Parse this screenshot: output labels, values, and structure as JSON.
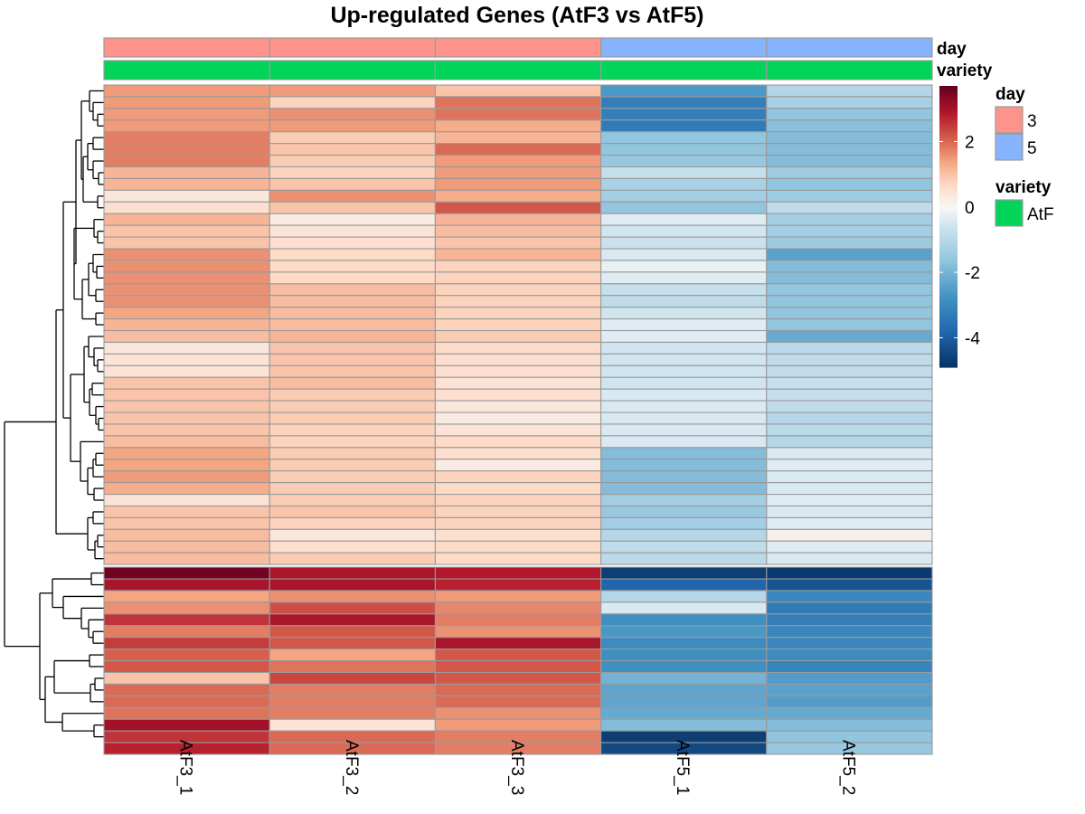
{
  "chart_data": {
    "type": "heatmap",
    "title": "Up-regulated Genes (AtF3 vs AtF5)",
    "columns": [
      "AtF3_1",
      "AtF3_2",
      "AtF3_3",
      "AtF5_1",
      "AtF5_2"
    ],
    "row_labels_shown": false,
    "values": [
      [
        1.5,
        1.5,
        1.0,
        -2.6,
        -1.0
      ],
      [
        1.5,
        0.8,
        1.9,
        -3.2,
        -1.2
      ],
      [
        1.5,
        1.6,
        1.9,
        -3.2,
        -1.6
      ],
      [
        1.5,
        1.5,
        1.3,
        -3.3,
        -1.7
      ],
      [
        1.8,
        0.9,
        1.2,
        -1.6,
        -1.8
      ],
      [
        1.8,
        1.0,
        2.0,
        -1.6,
        -1.8
      ],
      [
        1.8,
        0.9,
        1.5,
        -1.5,
        -1.8
      ],
      [
        1.2,
        0.8,
        1.5,
        -0.7,
        -1.4
      ],
      [
        1.2,
        1.0,
        1.5,
        -1.2,
        -1.6
      ],
      [
        0.4,
        1.6,
        1.3,
        -1.3,
        -1.4
      ],
      [
        0.6,
        1.0,
        2.2,
        -1.6,
        -0.8
      ],
      [
        1.2,
        0.3,
        1.2,
        -0.3,
        -1.3
      ],
      [
        1.0,
        0.5,
        1.1,
        -0.5,
        -1.3
      ],
      [
        1.0,
        0.6,
        1.0,
        -0.6,
        -1.4
      ],
      [
        1.6,
        0.7,
        1.2,
        -0.4,
        -2.4
      ],
      [
        1.6,
        0.7,
        0.8,
        -0.2,
        -1.8
      ],
      [
        1.6,
        0.7,
        0.8,
        -0.3,
        -1.8
      ],
      [
        1.6,
        1.1,
        0.8,
        -0.7,
        -1.6
      ],
      [
        1.6,
        1.1,
        0.8,
        -0.8,
        -1.6
      ],
      [
        1.4,
        1.1,
        0.8,
        -0.5,
        -1.6
      ],
      [
        1.2,
        1.1,
        0.8,
        -0.3,
        -1.6
      ],
      [
        1.1,
        1.2,
        0.9,
        -0.3,
        -2.2
      ],
      [
        0.4,
        1.0,
        0.7,
        -0.5,
        -0.9
      ],
      [
        0.5,
        1.0,
        0.6,
        -0.5,
        -0.8
      ],
      [
        0.5,
        1.0,
        0.6,
        -0.5,
        -0.8
      ],
      [
        1.0,
        1.1,
        0.5,
        -0.5,
        -0.7
      ],
      [
        1.0,
        0.9,
        0.6,
        -0.4,
        -0.7
      ],
      [
        1.0,
        0.9,
        0.4,
        -0.4,
        -0.8
      ],
      [
        1.0,
        0.9,
        0.3,
        -0.4,
        -1.0
      ],
      [
        1.0,
        0.8,
        0.5,
        -0.4,
        -0.9
      ],
      [
        1.1,
        0.8,
        0.7,
        -0.4,
        -1.0
      ],
      [
        1.4,
        0.9,
        0.6,
        -1.8,
        -0.4
      ],
      [
        1.4,
        0.9,
        0.3,
        -1.8,
        -0.3
      ],
      [
        1.5,
        0.9,
        0.8,
        -1.8,
        -0.4
      ],
      [
        1.3,
        0.9,
        0.7,
        -1.8,
        -0.4
      ],
      [
        0.5,
        0.9,
        0.8,
        -1.3,
        -0.3
      ],
      [
        1.0,
        1.0,
        0.8,
        -1.5,
        -0.4
      ],
      [
        1.0,
        0.8,
        0.8,
        -1.3,
        -0.3
      ],
      [
        1.1,
        0.4,
        0.6,
        -1.0,
        0.2
      ],
      [
        1.1,
        0.6,
        0.7,
        -0.8,
        -0.3
      ],
      [
        1.1,
        0.9,
        0.7,
        -0.9,
        -0.4
      ],
      [
        3.6,
        3.0,
        2.9,
        -4.6,
        -4.7
      ],
      [
        3.0,
        3.0,
        2.8,
        -3.8,
        -4.2
      ],
      [
        1.4,
        1.6,
        1.5,
        -1.0,
        -3.0
      ],
      [
        1.6,
        2.3,
        1.7,
        -0.4,
        -3.3
      ],
      [
        2.6,
        3.0,
        1.8,
        -2.8,
        -3.2
      ],
      [
        1.8,
        2.2,
        1.6,
        -2.6,
        -3.0
      ],
      [
        2.5,
        2.2,
        3.0,
        -2.9,
        -3.0
      ],
      [
        2.1,
        1.4,
        2.2,
        -2.8,
        -2.9
      ],
      [
        2.2,
        1.9,
        2.2,
        -2.8,
        -3.1
      ],
      [
        1.0,
        2.4,
        2.2,
        -2.0,
        -2.5
      ],
      [
        2.0,
        1.8,
        2.0,
        -2.3,
        -2.4
      ],
      [
        2.0,
        1.8,
        2.0,
        -2.3,
        -2.5
      ],
      [
        1.9,
        1.8,
        1.6,
        -2.2,
        -2.2
      ],
      [
        3.1,
        0.5,
        1.5,
        -1.8,
        -1.8
      ],
      [
        2.6,
        2.0,
        1.8,
        -4.6,
        -1.6
      ],
      [
        2.8,
        2.0,
        1.8,
        -4.4,
        -1.5
      ]
    ],
    "color_scale": {
      "min": -4.9,
      "max": 3.7,
      "stops": [
        {
          "value": -4.9,
          "color": "#053061"
        },
        {
          "value": -3.8,
          "color": "#2166ac"
        },
        {
          "value": -2.7,
          "color": "#4393c3"
        },
        {
          "value": -1.6,
          "color": "#92c5de"
        },
        {
          "value": -0.5,
          "color": "#d1e5f0"
        },
        {
          "value": 0.0,
          "color": "#f7f7f7"
        },
        {
          "value": 0.7,
          "color": "#fddbc7"
        },
        {
          "value": 1.4,
          "color": "#f4a582"
        },
        {
          "value": 2.1,
          "color": "#d6604d"
        },
        {
          "value": 2.9,
          "color": "#b2182b"
        },
        {
          "value": 3.7,
          "color": "#67001f"
        }
      ],
      "ticks": [
        2,
        0,
        -2,
        -4
      ],
      "tick_labels": [
        "2",
        "0",
        "-2",
        "-4"
      ]
    },
    "column_annotations": [
      {
        "name": "day",
        "values": [
          "3",
          "3",
          "3",
          "5",
          "5"
        ]
      },
      {
        "name": "variety",
        "values": [
          "AtF",
          "AtF",
          "AtF",
          "AtF",
          "AtF"
        ]
      }
    ],
    "annotation_legends": [
      {
        "title": "day",
        "items": [
          {
            "label": "3",
            "color": "#fe938c"
          },
          {
            "label": "5",
            "color": "#86b3fb"
          }
        ]
      },
      {
        "title": "variety",
        "items": [
          {
            "label": "AtF",
            "color": "#00d55a"
          }
        ]
      }
    ],
    "row_clusters_gap_after": 41,
    "dendrogram": true
  }
}
